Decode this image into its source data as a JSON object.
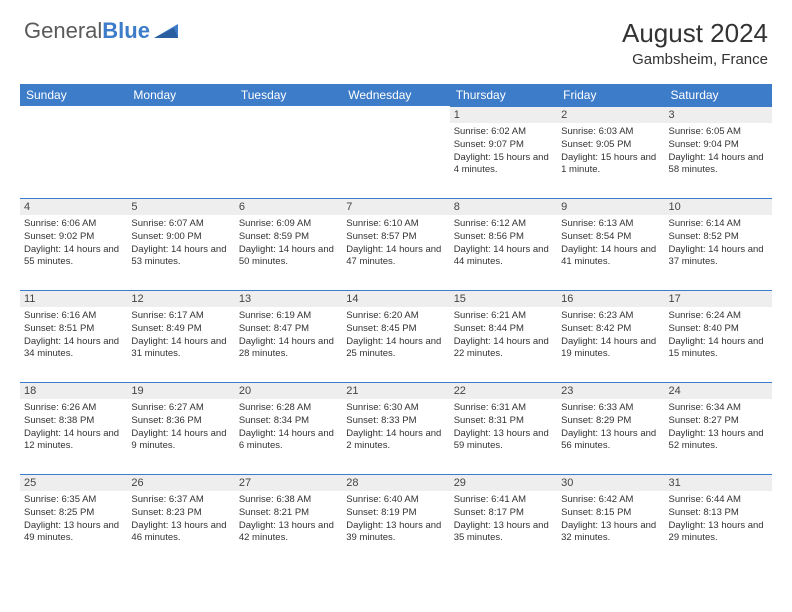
{
  "logo": {
    "text_general": "General",
    "text_blue": "Blue"
  },
  "header": {
    "title": "August 2024",
    "location": "Gambsheim, France"
  },
  "colors": {
    "header_blue": "#3d7cc9",
    "daynum_bg": "#eeeeee",
    "text": "#333333"
  },
  "days_of_week": [
    "Sunday",
    "Monday",
    "Tuesday",
    "Wednesday",
    "Thursday",
    "Friday",
    "Saturday"
  ],
  "weeks": [
    [
      null,
      null,
      null,
      null,
      {
        "n": "1",
        "sunrise": "6:02 AM",
        "sunset": "9:07 PM",
        "daylight": "15 hours and 4 minutes."
      },
      {
        "n": "2",
        "sunrise": "6:03 AM",
        "sunset": "9:05 PM",
        "daylight": "15 hours and 1 minute."
      },
      {
        "n": "3",
        "sunrise": "6:05 AM",
        "sunset": "9:04 PM",
        "daylight": "14 hours and 58 minutes."
      }
    ],
    [
      {
        "n": "4",
        "sunrise": "6:06 AM",
        "sunset": "9:02 PM",
        "daylight": "14 hours and 55 minutes."
      },
      {
        "n": "5",
        "sunrise": "6:07 AM",
        "sunset": "9:00 PM",
        "daylight": "14 hours and 53 minutes."
      },
      {
        "n": "6",
        "sunrise": "6:09 AM",
        "sunset": "8:59 PM",
        "daylight": "14 hours and 50 minutes."
      },
      {
        "n": "7",
        "sunrise": "6:10 AM",
        "sunset": "8:57 PM",
        "daylight": "14 hours and 47 minutes."
      },
      {
        "n": "8",
        "sunrise": "6:12 AM",
        "sunset": "8:56 PM",
        "daylight": "14 hours and 44 minutes."
      },
      {
        "n": "9",
        "sunrise": "6:13 AM",
        "sunset": "8:54 PM",
        "daylight": "14 hours and 41 minutes."
      },
      {
        "n": "10",
        "sunrise": "6:14 AM",
        "sunset": "8:52 PM",
        "daylight": "14 hours and 37 minutes."
      }
    ],
    [
      {
        "n": "11",
        "sunrise": "6:16 AM",
        "sunset": "8:51 PM",
        "daylight": "14 hours and 34 minutes."
      },
      {
        "n": "12",
        "sunrise": "6:17 AM",
        "sunset": "8:49 PM",
        "daylight": "14 hours and 31 minutes."
      },
      {
        "n": "13",
        "sunrise": "6:19 AM",
        "sunset": "8:47 PM",
        "daylight": "14 hours and 28 minutes."
      },
      {
        "n": "14",
        "sunrise": "6:20 AM",
        "sunset": "8:45 PM",
        "daylight": "14 hours and 25 minutes."
      },
      {
        "n": "15",
        "sunrise": "6:21 AM",
        "sunset": "8:44 PM",
        "daylight": "14 hours and 22 minutes."
      },
      {
        "n": "16",
        "sunrise": "6:23 AM",
        "sunset": "8:42 PM",
        "daylight": "14 hours and 19 minutes."
      },
      {
        "n": "17",
        "sunrise": "6:24 AM",
        "sunset": "8:40 PM",
        "daylight": "14 hours and 15 minutes."
      }
    ],
    [
      {
        "n": "18",
        "sunrise": "6:26 AM",
        "sunset": "8:38 PM",
        "daylight": "14 hours and 12 minutes."
      },
      {
        "n": "19",
        "sunrise": "6:27 AM",
        "sunset": "8:36 PM",
        "daylight": "14 hours and 9 minutes."
      },
      {
        "n": "20",
        "sunrise": "6:28 AM",
        "sunset": "8:34 PM",
        "daylight": "14 hours and 6 minutes."
      },
      {
        "n": "21",
        "sunrise": "6:30 AM",
        "sunset": "8:33 PM",
        "daylight": "14 hours and 2 minutes."
      },
      {
        "n": "22",
        "sunrise": "6:31 AM",
        "sunset": "8:31 PM",
        "daylight": "13 hours and 59 minutes."
      },
      {
        "n": "23",
        "sunrise": "6:33 AM",
        "sunset": "8:29 PM",
        "daylight": "13 hours and 56 minutes."
      },
      {
        "n": "24",
        "sunrise": "6:34 AM",
        "sunset": "8:27 PM",
        "daylight": "13 hours and 52 minutes."
      }
    ],
    [
      {
        "n": "25",
        "sunrise": "6:35 AM",
        "sunset": "8:25 PM",
        "daylight": "13 hours and 49 minutes."
      },
      {
        "n": "26",
        "sunrise": "6:37 AM",
        "sunset": "8:23 PM",
        "daylight": "13 hours and 46 minutes."
      },
      {
        "n": "27",
        "sunrise": "6:38 AM",
        "sunset": "8:21 PM",
        "daylight": "13 hours and 42 minutes."
      },
      {
        "n": "28",
        "sunrise": "6:40 AM",
        "sunset": "8:19 PM",
        "daylight": "13 hours and 39 minutes."
      },
      {
        "n": "29",
        "sunrise": "6:41 AM",
        "sunset": "8:17 PM",
        "daylight": "13 hours and 35 minutes."
      },
      {
        "n": "30",
        "sunrise": "6:42 AM",
        "sunset": "8:15 PM",
        "daylight": "13 hours and 32 minutes."
      },
      {
        "n": "31",
        "sunrise": "6:44 AM",
        "sunset": "8:13 PM",
        "daylight": "13 hours and 29 minutes."
      }
    ]
  ],
  "labels": {
    "sunrise_prefix": "Sunrise: ",
    "sunset_prefix": "Sunset: ",
    "daylight_prefix": "Daylight: "
  }
}
